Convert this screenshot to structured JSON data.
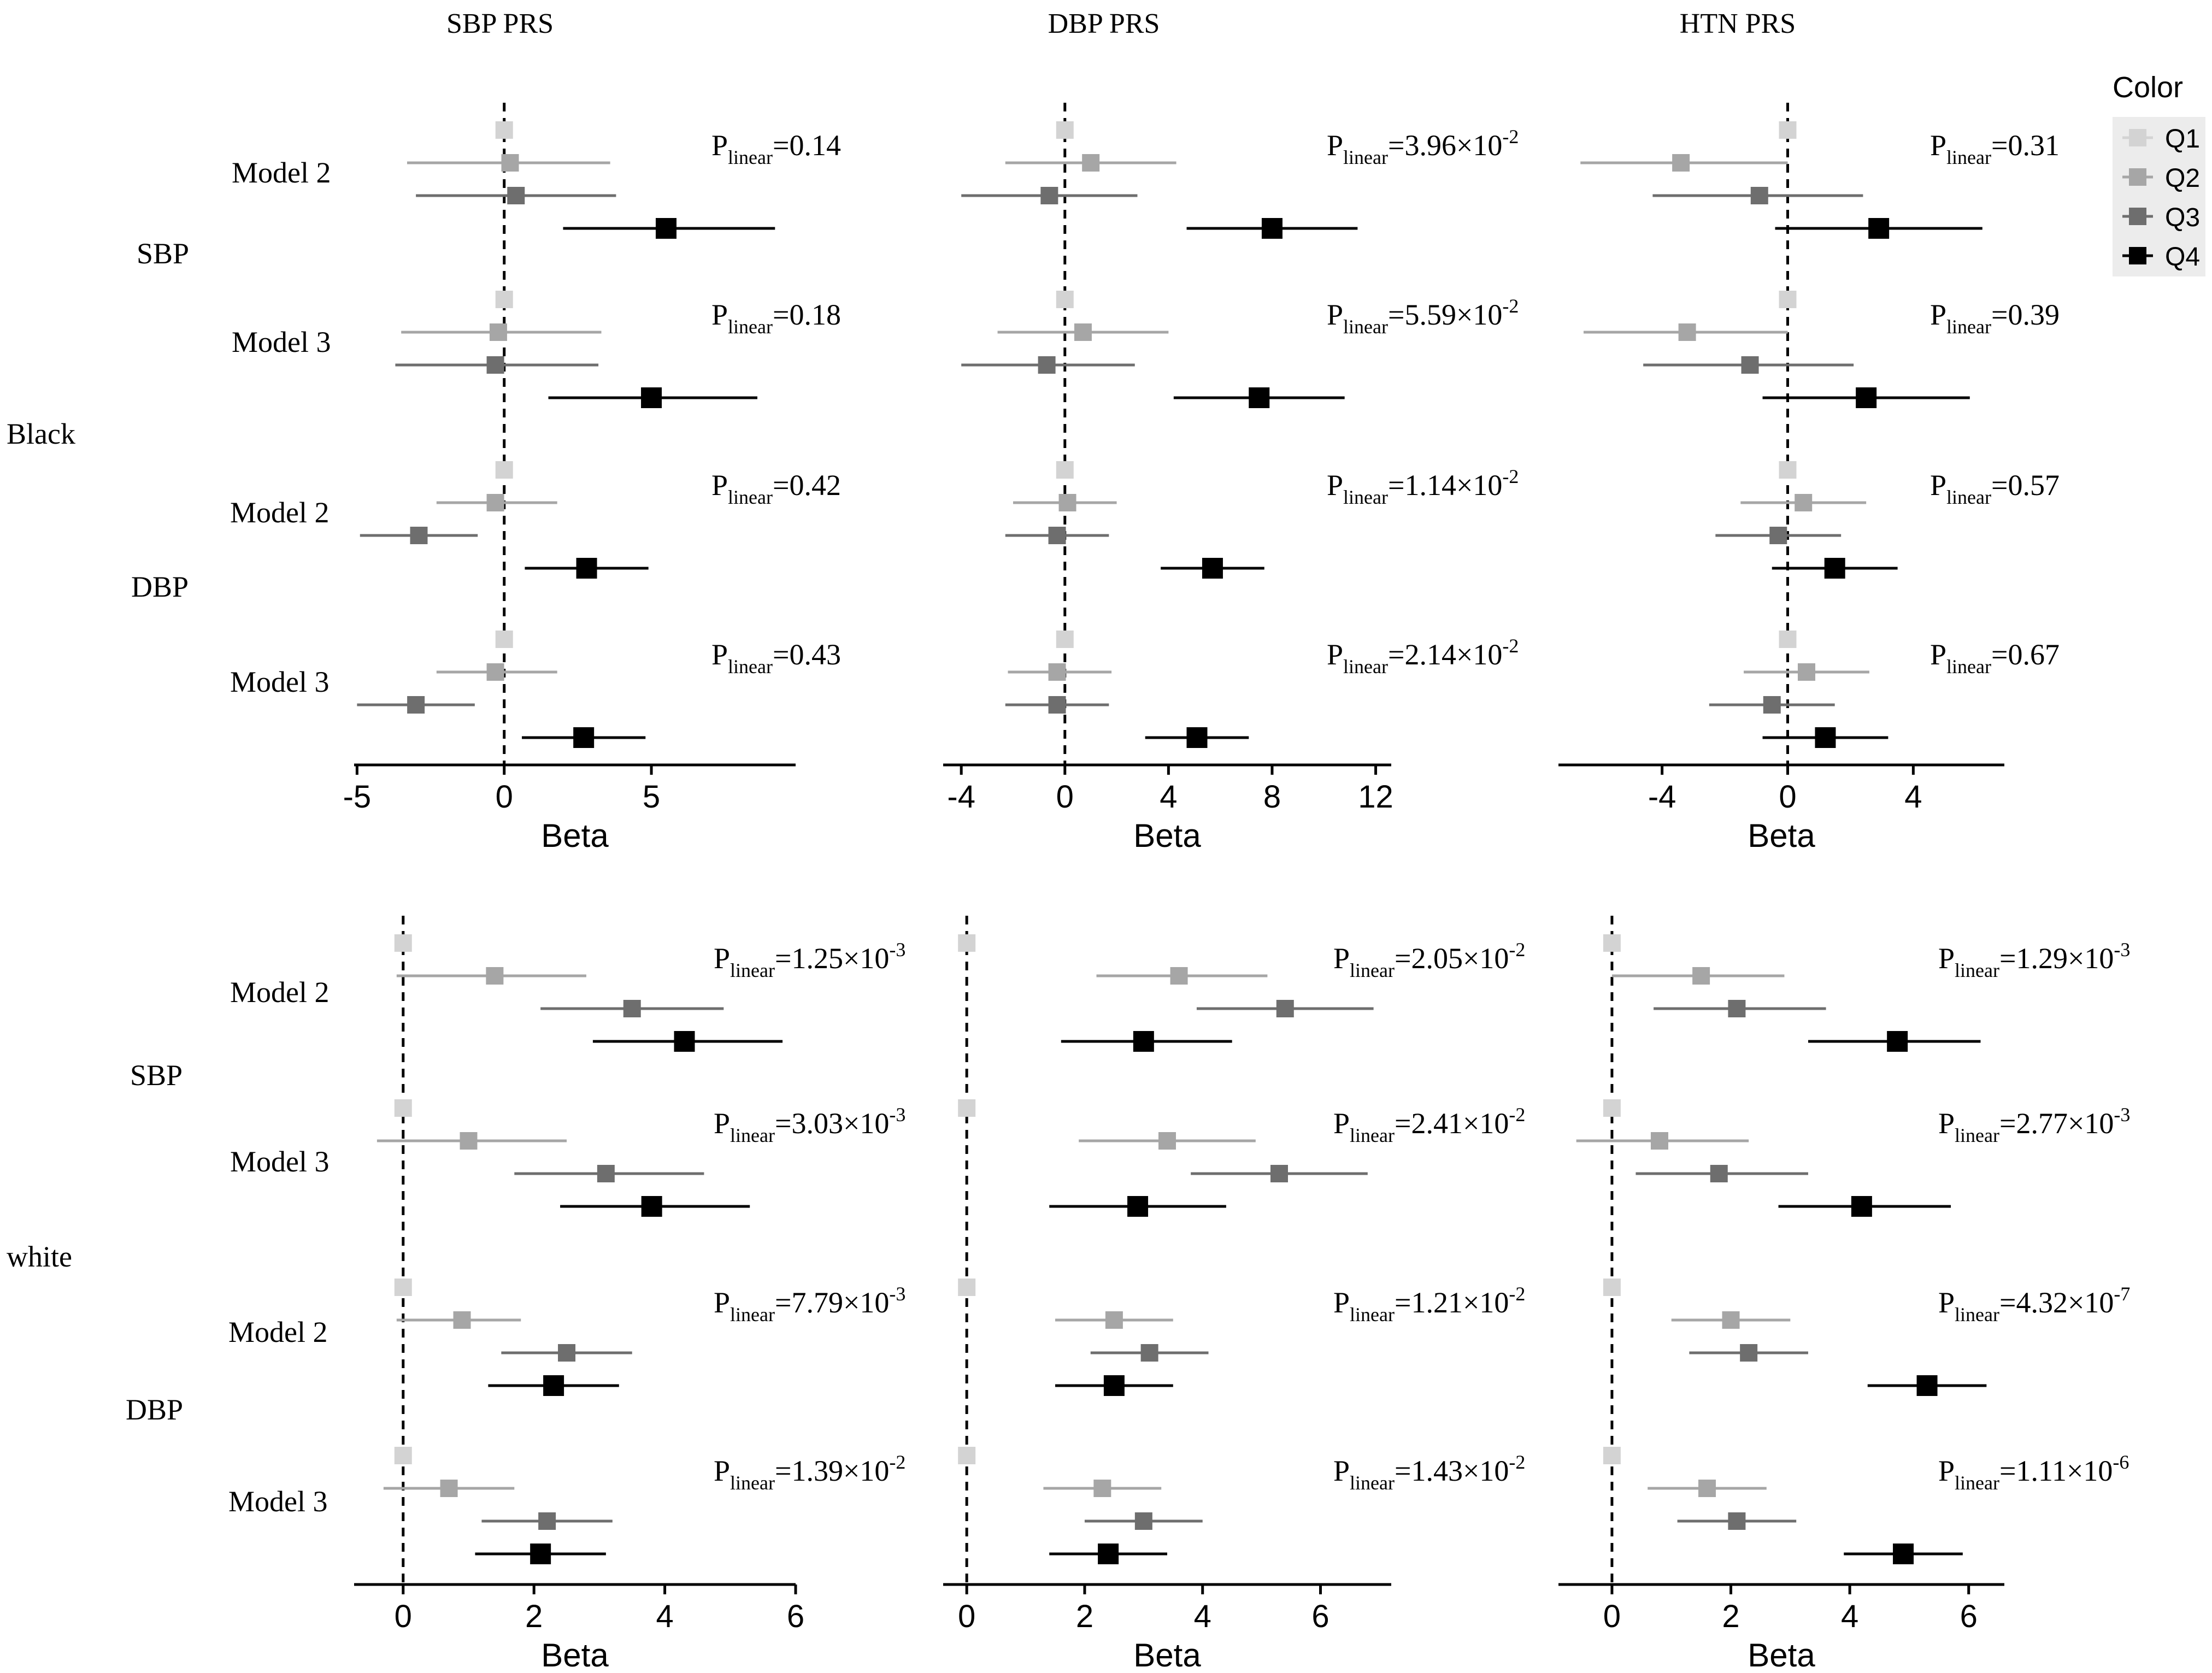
{
  "figure": {
    "columns": [
      "SBP PRS",
      "DBP PRS",
      "HTN PRS"
    ],
    "row_groups": [
      "Black",
      "white"
    ],
    "outcomes": [
      "SBP",
      "DBP"
    ],
    "models": [
      "Model 2",
      "Model 3"
    ],
    "xlabel": "Beta",
    "p_prefix": "P",
    "p_sub": "linear"
  },
  "legend": {
    "title": "Color",
    "items": [
      {
        "label": "Q1",
        "color": "#d3d3d3"
      },
      {
        "label": "Q2",
        "color": "#a6a6a6"
      },
      {
        "label": "Q3",
        "color": "#6e6e6e"
      },
      {
        "label": "Q4",
        "color": "#000000"
      }
    ]
  },
  "chart_data": [
    {
      "type": "forest",
      "row_group": "Black",
      "column": "SBP PRS",
      "xlim": [
        -5.1,
        9.9
      ],
      "ticks": [
        -5,
        0,
        5
      ],
      "tick_labels": [
        "-5",
        "0",
        "5"
      ],
      "ref_line": 0,
      "blocks": [
        {
          "outcome": "SBP",
          "model": "Model 2",
          "p": {
            "base": "=0.14",
            "exp": ""
          },
          "points": [
            {
              "q": "Q1",
              "est": 0,
              "lo": 0,
              "hi": 0
            },
            {
              "q": "Q2",
              "est": 0.2,
              "lo": -3.3,
              "hi": 3.6
            },
            {
              "q": "Q3",
              "est": 0.4,
              "lo": -3.0,
              "hi": 3.8
            },
            {
              "q": "Q4",
              "est": 5.5,
              "lo": 2.0,
              "hi": 9.2
            }
          ]
        },
        {
          "outcome": "SBP",
          "model": "Model 3",
          "p": {
            "base": "=0.18",
            "exp": ""
          },
          "points": [
            {
              "q": "Q1",
              "est": 0,
              "lo": 0,
              "hi": 0
            },
            {
              "q": "Q2",
              "est": -0.2,
              "lo": -3.5,
              "hi": 3.3
            },
            {
              "q": "Q3",
              "est": -0.3,
              "lo": -3.7,
              "hi": 3.2
            },
            {
              "q": "Q4",
              "est": 5.0,
              "lo": 1.5,
              "hi": 8.6
            }
          ]
        },
        {
          "outcome": "DBP",
          "model": "Model 2",
          "p": {
            "base": "=0.42",
            "exp": ""
          },
          "points": [
            {
              "q": "Q1",
              "est": 0,
              "lo": 0,
              "hi": 0
            },
            {
              "q": "Q2",
              "est": -0.3,
              "lo": -2.3,
              "hi": 1.8
            },
            {
              "q": "Q3",
              "est": -2.9,
              "lo": -4.9,
              "hi": -0.9
            },
            {
              "q": "Q4",
              "est": 2.8,
              "lo": 0.7,
              "hi": 4.9
            }
          ]
        },
        {
          "outcome": "DBP",
          "model": "Model 3",
          "p": {
            "base": "=0.43",
            "exp": ""
          },
          "points": [
            {
              "q": "Q1",
              "est": 0,
              "lo": 0,
              "hi": 0
            },
            {
              "q": "Q2",
              "est": -0.3,
              "lo": -2.3,
              "hi": 1.8
            },
            {
              "q": "Q3",
              "est": -3.0,
              "lo": -5.0,
              "hi": -1.0
            },
            {
              "q": "Q4",
              "est": 2.7,
              "lo": 0.6,
              "hi": 4.8
            }
          ]
        }
      ]
    },
    {
      "type": "forest",
      "row_group": "Black",
      "column": "DBP PRS",
      "xlim": [
        -4.7,
        12.6
      ],
      "ticks": [
        -4,
        0,
        4,
        8,
        12
      ],
      "tick_labels": [
        "-4",
        "0",
        "4",
        "8",
        "12"
      ],
      "ref_line": 0,
      "blocks": [
        {
          "outcome": "SBP",
          "model": "Model 2",
          "p": {
            "base": "=3.96×10",
            "exp": "-2"
          },
          "points": [
            {
              "q": "Q1",
              "est": 0,
              "lo": 0,
              "hi": 0
            },
            {
              "q": "Q2",
              "est": 1.0,
              "lo": -2.3,
              "hi": 4.3
            },
            {
              "q": "Q3",
              "est": -0.6,
              "lo": -4.0,
              "hi": 2.8
            },
            {
              "q": "Q4",
              "est": 8.0,
              "lo": 4.7,
              "hi": 11.3
            }
          ]
        },
        {
          "outcome": "SBP",
          "model": "Model 3",
          "p": {
            "base": "=5.59×10",
            "exp": "-2"
          },
          "points": [
            {
              "q": "Q1",
              "est": 0,
              "lo": 0,
              "hi": 0
            },
            {
              "q": "Q2",
              "est": 0.7,
              "lo": -2.6,
              "hi": 4.0
            },
            {
              "q": "Q3",
              "est": -0.7,
              "lo": -4.0,
              "hi": 2.7
            },
            {
              "q": "Q4",
              "est": 7.5,
              "lo": 4.2,
              "hi": 10.8
            }
          ]
        },
        {
          "outcome": "DBP",
          "model": "Model 2",
          "p": {
            "base": "=1.14×10",
            "exp": "-2"
          },
          "points": [
            {
              "q": "Q1",
              "est": 0,
              "lo": 0,
              "hi": 0
            },
            {
              "q": "Q2",
              "est": 0.1,
              "lo": -2.0,
              "hi": 2.0
            },
            {
              "q": "Q3",
              "est": -0.3,
              "lo": -2.3,
              "hi": 1.7
            },
            {
              "q": "Q4",
              "est": 5.7,
              "lo": 3.7,
              "hi": 7.7
            }
          ]
        },
        {
          "outcome": "DBP",
          "model": "Model 3",
          "p": {
            "base": "=2.14×10",
            "exp": "-2"
          },
          "points": [
            {
              "q": "Q1",
              "est": 0,
              "lo": 0,
              "hi": 0
            },
            {
              "q": "Q2",
              "est": -0.3,
              "lo": -2.2,
              "hi": 1.8
            },
            {
              "q": "Q3",
              "est": -0.3,
              "lo": -2.3,
              "hi": 1.7
            },
            {
              "q": "Q4",
              "est": 5.1,
              "lo": 3.1,
              "hi": 7.1
            }
          ]
        }
      ]
    },
    {
      "type": "forest",
      "row_group": "Black",
      "column": "HTN PRS",
      "xlim": [
        -7.3,
        6.9
      ],
      "ticks": [
        -4,
        0,
        4
      ],
      "tick_labels": [
        "-4",
        "0",
        "4"
      ],
      "ref_line": 0,
      "blocks": [
        {
          "outcome": "SBP",
          "model": "Model 2",
          "p": {
            "base": "=0.31",
            "exp": ""
          },
          "points": [
            {
              "q": "Q1",
              "est": 0,
              "lo": 0,
              "hi": 0
            },
            {
              "q": "Q2",
              "est": -3.4,
              "lo": -6.6,
              "hi": 0
            },
            {
              "q": "Q3",
              "est": -0.9,
              "lo": -4.3,
              "hi": 2.4
            },
            {
              "q": "Q4",
              "est": 2.9,
              "lo": -0.4,
              "hi": 6.2
            }
          ]
        },
        {
          "outcome": "SBP",
          "model": "Model 3",
          "p": {
            "base": "=0.39",
            "exp": ""
          },
          "points": [
            {
              "q": "Q1",
              "est": 0,
              "lo": 0,
              "hi": 0
            },
            {
              "q": "Q2",
              "est": -3.2,
              "lo": -6.5,
              "hi": 0
            },
            {
              "q": "Q3",
              "est": -1.2,
              "lo": -4.6,
              "hi": 2.1
            },
            {
              "q": "Q4",
              "est": 2.5,
              "lo": -0.8,
              "hi": 5.8
            }
          ]
        },
        {
          "outcome": "DBP",
          "model": "Model 2",
          "p": {
            "base": "=0.57",
            "exp": ""
          },
          "points": [
            {
              "q": "Q1",
              "est": 0,
              "lo": 0,
              "hi": 0
            },
            {
              "q": "Q2",
              "est": 0.5,
              "lo": -1.5,
              "hi": 2.5
            },
            {
              "q": "Q3",
              "est": -0.3,
              "lo": -2.3,
              "hi": 1.7
            },
            {
              "q": "Q4",
              "est": 1.5,
              "lo": -0.5,
              "hi": 3.5
            }
          ]
        },
        {
          "outcome": "DBP",
          "model": "Model 3",
          "p": {
            "base": "=0.67",
            "exp": ""
          },
          "points": [
            {
              "q": "Q1",
              "est": 0,
              "lo": 0,
              "hi": 0
            },
            {
              "q": "Q2",
              "est": 0.6,
              "lo": -1.4,
              "hi": 2.6
            },
            {
              "q": "Q3",
              "est": -0.5,
              "lo": -2.5,
              "hi": 1.5
            },
            {
              "q": "Q4",
              "est": 1.2,
              "lo": -0.8,
              "hi": 3.2
            }
          ]
        }
      ]
    },
    {
      "type": "forest",
      "row_group": "white",
      "column": "SBP PRS",
      "xlim": [
        -0.75,
        6.0
      ],
      "ticks": [
        0,
        2,
        4,
        6
      ],
      "tick_labels": [
        "0",
        "2",
        "4",
        "6"
      ],
      "ref_line": 0,
      "blocks": [
        {
          "outcome": "SBP",
          "model": "Model 2",
          "p": {
            "base": "=1.25×10",
            "exp": "-3"
          },
          "points": [
            {
              "q": "Q1",
              "est": 0,
              "lo": 0,
              "hi": 0
            },
            {
              "q": "Q2",
              "est": 1.4,
              "lo": -0.1,
              "hi": 2.8
            },
            {
              "q": "Q3",
              "est": 3.5,
              "lo": 2.1,
              "hi": 4.9
            },
            {
              "q": "Q4",
              "est": 4.3,
              "lo": 2.9,
              "hi": 5.8
            }
          ]
        },
        {
          "outcome": "SBP",
          "model": "Model 3",
          "p": {
            "base": "=3.03×10",
            "exp": "-3"
          },
          "points": [
            {
              "q": "Q1",
              "est": 0,
              "lo": 0,
              "hi": 0
            },
            {
              "q": "Q2",
              "est": 1.0,
              "lo": -0.4,
              "hi": 2.5
            },
            {
              "q": "Q3",
              "est": 3.1,
              "lo": 1.7,
              "hi": 4.6
            },
            {
              "q": "Q4",
              "est": 3.8,
              "lo": 2.4,
              "hi": 5.3
            }
          ]
        },
        {
          "outcome": "DBP",
          "model": "Model 2",
          "p": {
            "base": "=7.79×10",
            "exp": "-3"
          },
          "points": [
            {
              "q": "Q1",
              "est": 0,
              "lo": 0,
              "hi": 0
            },
            {
              "q": "Q2",
              "est": 0.9,
              "lo": -0.1,
              "hi": 1.8
            },
            {
              "q": "Q3",
              "est": 2.5,
              "lo": 1.5,
              "hi": 3.5
            },
            {
              "q": "Q4",
              "est": 2.3,
              "lo": 1.3,
              "hi": 3.3
            }
          ]
        },
        {
          "outcome": "DBP",
          "model": "Model 3",
          "p": {
            "base": "=1.39×10",
            "exp": "-2"
          },
          "points": [
            {
              "q": "Q1",
              "est": 0,
              "lo": 0,
              "hi": 0
            },
            {
              "q": "Q2",
              "est": 0.7,
              "lo": -0.3,
              "hi": 1.7
            },
            {
              "q": "Q3",
              "est": 2.2,
              "lo": 1.2,
              "hi": 3.2
            },
            {
              "q": "Q4",
              "est": 2.1,
              "lo": 1.1,
              "hi": 3.1
            }
          ]
        }
      ]
    },
    {
      "type": "forest",
      "row_group": "white",
      "column": "DBP PRS",
      "xlim": [
        -0.4,
        7.2
      ],
      "ticks": [
        0,
        2,
        4,
        6
      ],
      "tick_labels": [
        "0",
        "2",
        "4",
        "6"
      ],
      "ref_line": 0,
      "blocks": [
        {
          "outcome": "SBP",
          "model": "Model 2",
          "p": {
            "base": "=2.05×10",
            "exp": "-2"
          },
          "points": [
            {
              "q": "Q1",
              "est": 0,
              "lo": 0,
              "hi": 0
            },
            {
              "q": "Q2",
              "est": 3.6,
              "lo": 2.2,
              "hi": 5.1
            },
            {
              "q": "Q3",
              "est": 5.4,
              "lo": 3.9,
              "hi": 6.9
            },
            {
              "q": "Q4",
              "est": 3.0,
              "lo": 1.6,
              "hi": 4.5
            }
          ]
        },
        {
          "outcome": "SBP",
          "model": "Model 3",
          "p": {
            "base": "=2.41×10",
            "exp": "-2"
          },
          "points": [
            {
              "q": "Q1",
              "est": 0,
              "lo": 0,
              "hi": 0
            },
            {
              "q": "Q2",
              "est": 3.4,
              "lo": 1.9,
              "hi": 4.9
            },
            {
              "q": "Q3",
              "est": 5.3,
              "lo": 3.8,
              "hi": 6.8
            },
            {
              "q": "Q4",
              "est": 2.9,
              "lo": 1.4,
              "hi": 4.4
            }
          ]
        },
        {
          "outcome": "DBP",
          "model": "Model 2",
          "p": {
            "base": "=1.21×10",
            "exp": "-2"
          },
          "points": [
            {
              "q": "Q1",
              "est": 0,
              "lo": 0,
              "hi": 0
            },
            {
              "q": "Q2",
              "est": 2.5,
              "lo": 1.5,
              "hi": 3.5
            },
            {
              "q": "Q3",
              "est": 3.1,
              "lo": 2.1,
              "hi": 4.1
            },
            {
              "q": "Q4",
              "est": 2.5,
              "lo": 1.5,
              "hi": 3.5
            }
          ]
        },
        {
          "outcome": "DBP",
          "model": "Model 3",
          "p": {
            "base": "=1.43×10",
            "exp": "-2"
          },
          "points": [
            {
              "q": "Q1",
              "est": 0,
              "lo": 0,
              "hi": 0
            },
            {
              "q": "Q2",
              "est": 2.3,
              "lo": 1.3,
              "hi": 3.3
            },
            {
              "q": "Q3",
              "est": 3.0,
              "lo": 2.0,
              "hi": 4.0
            },
            {
              "q": "Q4",
              "est": 2.4,
              "lo": 1.4,
              "hi": 3.4
            }
          ]
        }
      ]
    },
    {
      "type": "forest",
      "row_group": "white",
      "column": "HTN PRS",
      "xlim": [
        -0.9,
        6.6
      ],
      "ticks": [
        0,
        2,
        4,
        6
      ],
      "tick_labels": [
        "0",
        "2",
        "4",
        "6"
      ],
      "ref_line": 0,
      "blocks": [
        {
          "outcome": "SBP",
          "model": "Model 2",
          "p": {
            "base": "=1.29×10",
            "exp": "-3"
          },
          "points": [
            {
              "q": "Q1",
              "est": 0,
              "lo": 0,
              "hi": 0
            },
            {
              "q": "Q2",
              "est": 1.5,
              "lo": 0,
              "hi": 2.9
            },
            {
              "q": "Q3",
              "est": 2.1,
              "lo": 0.7,
              "hi": 3.6
            },
            {
              "q": "Q4",
              "est": 4.8,
              "lo": 3.3,
              "hi": 6.2
            }
          ]
        },
        {
          "outcome": "SBP",
          "model": "Model 3",
          "p": {
            "base": "=2.77×10",
            "exp": "-3"
          },
          "points": [
            {
              "q": "Q1",
              "est": 0,
              "lo": 0,
              "hi": 0
            },
            {
              "q": "Q2",
              "est": 0.8,
              "lo": -0.6,
              "hi": 2.3
            },
            {
              "q": "Q3",
              "est": 1.8,
              "lo": 0.4,
              "hi": 3.3
            },
            {
              "q": "Q4",
              "est": 4.2,
              "lo": 2.8,
              "hi": 5.7
            }
          ]
        },
        {
          "outcome": "DBP",
          "model": "Model 2",
          "p": {
            "base": "=4.32×10",
            "exp": "-7"
          },
          "points": [
            {
              "q": "Q1",
              "est": 0,
              "lo": 0,
              "hi": 0
            },
            {
              "q": "Q2",
              "est": 2.0,
              "lo": 1.0,
              "hi": 3.0
            },
            {
              "q": "Q3",
              "est": 2.3,
              "lo": 1.3,
              "hi": 3.3
            },
            {
              "q": "Q4",
              "est": 5.3,
              "lo": 4.3,
              "hi": 6.3
            }
          ]
        },
        {
          "outcome": "DBP",
          "model": "Model 3",
          "p": {
            "base": "=1.11×10",
            "exp": "-6"
          },
          "points": [
            {
              "q": "Q1",
              "est": 0,
              "lo": 0,
              "hi": 0
            },
            {
              "q": "Q2",
              "est": 1.6,
              "lo": 0.6,
              "hi": 2.6
            },
            {
              "q": "Q3",
              "est": 2.1,
              "lo": 1.1,
              "hi": 3.1
            },
            {
              "q": "Q4",
              "est": 4.9,
              "lo": 3.9,
              "hi": 5.9
            }
          ]
        }
      ]
    }
  ]
}
